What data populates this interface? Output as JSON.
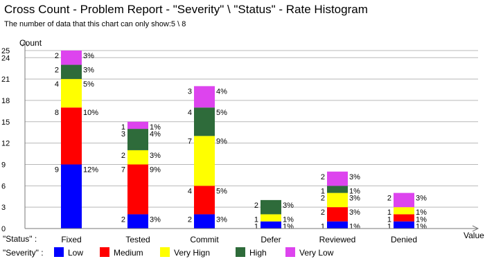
{
  "chart_data": {
    "type": "bar",
    "stacked": true,
    "title": "Cross Count - Problem Report - \"Severity\" \\ \"Status\" - Rate Histogram",
    "subtitle": "The number of data that this chart can only show:5 \\ 8",
    "ylabel": "Count",
    "xlabel": "Value",
    "category_axis_label": "\"Status\" :",
    "legend_title": "\"Severity\" :",
    "y_ticks": [
      0,
      3,
      6,
      9,
      12,
      15,
      18,
      21,
      24,
      25
    ],
    "ylim": [
      0,
      25
    ],
    "grid": true,
    "legend_position": "bottom",
    "categories": [
      "Fixed",
      "Tested",
      "Commit",
      "Defer",
      "Reviewed",
      "Denied"
    ],
    "series": [
      {
        "name": "Low",
        "color": "#0000ff",
        "values": [
          9,
          2,
          2,
          1,
          1,
          1
        ],
        "percents": [
          "12%",
          "3%",
          "3%",
          "1%",
          "1%",
          "1%"
        ]
      },
      {
        "name": "Medium",
        "color": "#ff0000",
        "values": [
          8,
          7,
          4,
          0,
          2,
          1
        ],
        "percents": [
          "10%",
          "9%",
          "5%",
          "",
          "3%",
          "1%"
        ]
      },
      {
        "name": "Very Hign",
        "color": "#ffff00",
        "values": [
          4,
          2,
          7,
          1,
          2,
          1
        ],
        "percents": [
          "5%",
          "3%",
          "9%",
          "1%",
          "3%",
          "1%"
        ]
      },
      {
        "name": "High",
        "color": "#2e6b3a",
        "values": [
          2,
          3,
          4,
          2,
          1,
          0
        ],
        "percents": [
          "3%",
          "4%",
          "5%",
          "3%",
          "1%",
          ""
        ]
      },
      {
        "name": "Very Low",
        "color": "#dd44ee",
        "values": [
          2,
          1,
          3,
          0,
          2,
          2
        ],
        "percents": [
          "3%",
          "1%",
          "4%",
          "",
          "3%",
          "3%"
        ]
      }
    ]
  }
}
